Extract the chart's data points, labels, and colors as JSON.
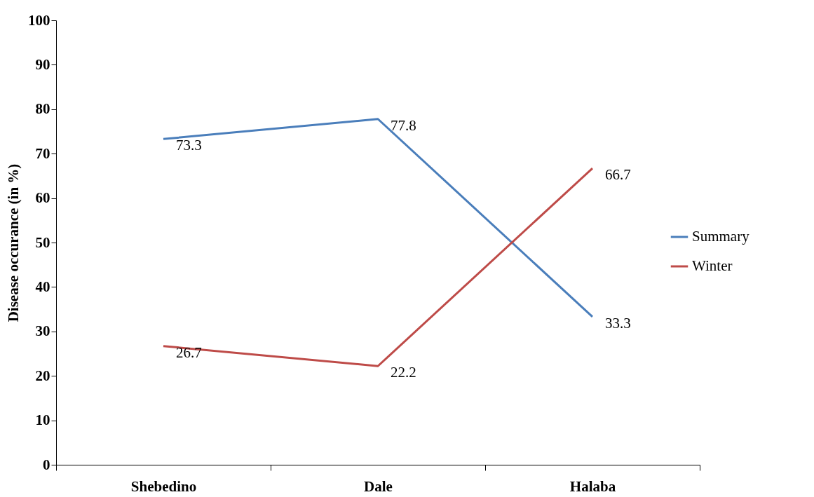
{
  "chart_data": {
    "type": "line",
    "ylabel": "Disease occurance (in %)",
    "categories": [
      "Shebedino",
      "Dale",
      "Halaba"
    ],
    "series": [
      {
        "name": "Summary",
        "color": "#4a7ebb",
        "values": [
          73.3,
          77.8,
          33.3
        ]
      },
      {
        "name": "Winter",
        "color": "#be4b48",
        "values": [
          26.7,
          22.2,
          66.7
        ]
      }
    ],
    "ylim": [
      0,
      100
    ],
    "yticks": [
      0,
      10,
      20,
      30,
      40,
      50,
      60,
      70,
      80,
      90,
      100
    ],
    "data_labels": true,
    "legend": "right",
    "grid": false
  }
}
